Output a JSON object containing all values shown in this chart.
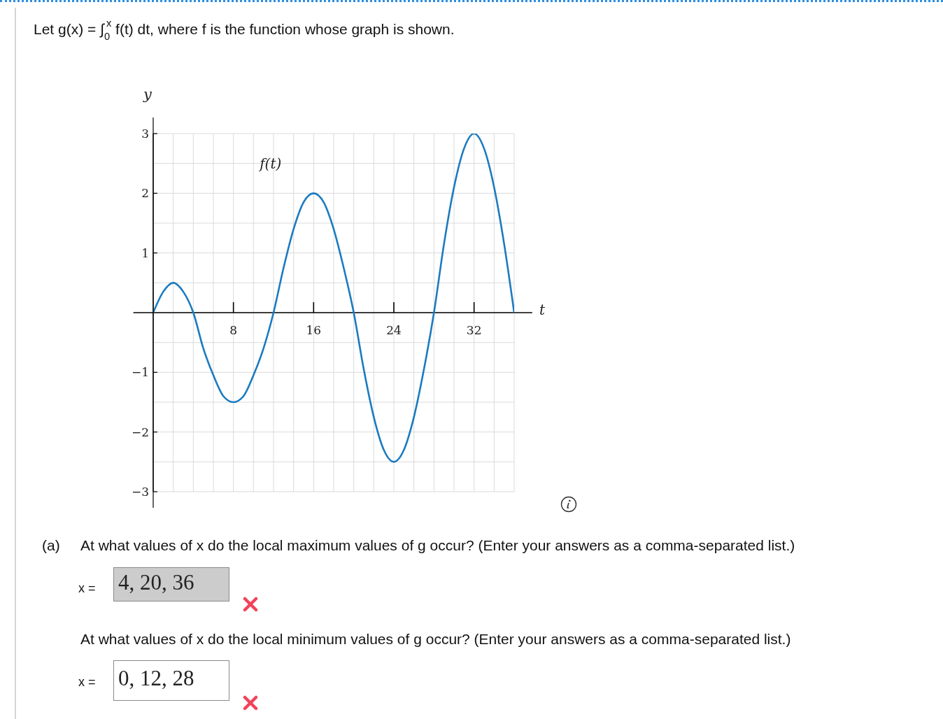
{
  "chart_data": {
    "type": "line",
    "title": "Let g(x) = ∫$_{0}$$^{x}$ f(t) dt, where f is the function whose graph is shown.",
    "xlabel": "t",
    "ylabel": "y",
    "x": [
      0,
      1,
      2,
      3,
      4,
      5,
      6,
      7,
      8,
      9,
      10,
      11,
      12,
      13,
      14,
      15,
      16,
      17,
      18,
      19,
      20,
      21,
      22,
      23,
      24,
      25,
      26,
      27,
      28,
      29,
      30,
      31,
      32,
      33,
      34,
      35,
      36
    ],
    "series": [
      {
        "name": "f(t)",
        "color": "#1b7bc0",
        "values": [
          0,
          0.35,
          0.5,
          0.35,
          0,
          -0.6,
          -1.05,
          -1.4,
          -1.5,
          -1.4,
          -1.05,
          -0.6,
          0,
          0.75,
          1.4,
          1.85,
          2,
          1.85,
          1.4,
          0.75,
          0,
          -0.95,
          -1.75,
          -2.3,
          -2.5,
          -2.3,
          -1.75,
          -0.95,
          0,
          1.15,
          2.1,
          2.75,
          3,
          2.75,
          2.1,
          1.15,
          0
        ]
      }
    ],
    "xlim": [
      0,
      36
    ],
    "ylim": [
      -3,
      3
    ],
    "xticks": [
      {
        "value": 0,
        "label": null
      },
      {
        "value": 2,
        "label": null
      },
      {
        "value": 4,
        "label": null
      },
      {
        "value": 6,
        "label": null
      },
      8,
      {
        "value": 10,
        "label": null
      },
      {
        "value": 12,
        "label": null
      },
      {
        "value": 14,
        "label": null
      },
      16,
      {
        "value": 18,
        "label": null
      },
      {
        "value": 20,
        "label": null
      },
      {
        "value": 22,
        "label": null
      },
      24,
      {
        "value": 26,
        "label": null
      },
      {
        "value": 28,
        "label": null
      },
      {
        "value": 30,
        "label": null
      },
      32,
      {
        "value": 34,
        "label": null
      },
      {
        "value": 36,
        "label": null
      }
    ],
    "yticks": [
      {
        "value": -3,
        "label": "−3"
      },
      {
        "value": -2.5,
        "label": null
      },
      {
        "value": -2,
        "label": "−2"
      },
      {
        "value": -1.5,
        "label": null
      },
      {
        "value": -1,
        "label": "−1"
      },
      {
        "value": -0.5,
        "label": null
      },
      {
        "value": 0,
        "label": null
      },
      {
        "value": 0.5,
        "label": null
      },
      1,
      {
        "value": 1.5,
        "label": null
      },
      2,
      {
        "value": 2.5,
        "label": null
      },
      3
    ],
    "grid": true,
    "annotations": [
      "(a)",
      "At what values of x do the local maximum values of g occur? (Enter your answers as a comma-separated list.)",
      "x =",
      "4, 20, 36",
      "At what values of x do the local minimum values of g occur? (Enter your answers as a comma-separated list.)",
      "x =",
      "0, 12, 28"
    ]
  }
}
